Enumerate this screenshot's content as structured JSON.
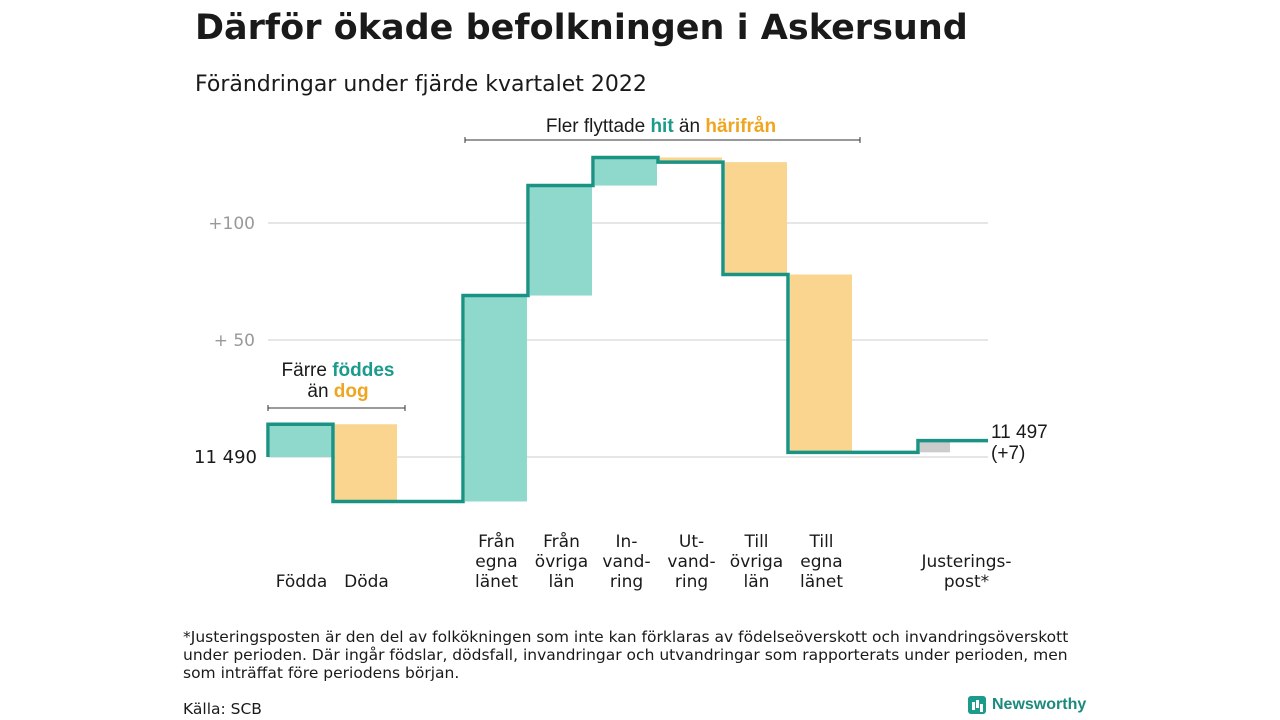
{
  "title": "Därför ökade befolkningen i Askersund",
  "subtitle": "Förändringar under fjärde kvartalet 2022",
  "annotations": {
    "left": {
      "pre": "Färre ",
      "hit": "föddes",
      "line2pre": "än ",
      "dog": "dog"
    },
    "top": {
      "pre": "Fler flyttade ",
      "hit": "hit",
      "mid": " än ",
      "harifran": "härifrån"
    }
  },
  "footnote": "*Justeringsposten är den del av folkökningen som inte kan förklaras av födelseöverskott och invandringsöverskott under perioden. Där ingår födslar, dödsfall, invandringar och utvandringar som rapporterats under perioden, men som inträffat före periodens början.",
  "source": "Källa: SCB",
  "brand": "Newsworthy",
  "colors": {
    "increase": "#8ed8cc",
    "decrease": "#fad58f",
    "adjustment": "#cccccc",
    "line": "#1a9384",
    "grid": "#dddddd"
  },
  "chart_data": {
    "type": "waterfall",
    "start_value": 11490,
    "start_label": "11 490",
    "end_label": [
      "11 497",
      "(+7)"
    ],
    "y_ticks": [
      {
        "value": 11540,
        "label": "+ 50"
      },
      {
        "value": 11590,
        "label": "+100"
      }
    ],
    "ylim": [
      11480,
      11630
    ],
    "steps": [
      {
        "label": [
          "Födda"
        ],
        "change": 14,
        "kind": "increase"
      },
      {
        "label": [
          "Döda"
        ],
        "change": -33,
        "kind": "decrease"
      },
      {
        "label": [
          "",
          "",
          ""
        ],
        "change": 0,
        "kind": "gap"
      },
      {
        "label": [
          "Från",
          "egna",
          "länet"
        ],
        "change": 88,
        "kind": "increase"
      },
      {
        "label": [
          "Från",
          "övriga",
          "län"
        ],
        "change": 47,
        "kind": "increase"
      },
      {
        "label": [
          "In-",
          "vand-",
          "ring"
        ],
        "change": 12,
        "kind": "increase"
      },
      {
        "label": [
          "Ut-",
          "vand-",
          "ring"
        ],
        "change": -2,
        "kind": "decrease"
      },
      {
        "label": [
          "Till",
          "övriga",
          "län"
        ],
        "change": -48,
        "kind": "decrease"
      },
      {
        "label": [
          "Till",
          "egna",
          "länet"
        ],
        "change": -76,
        "kind": "decrease"
      },
      {
        "label": [
          "",
          "",
          ""
        ],
        "change": 0,
        "kind": "gap"
      },
      {
        "label": [
          "Justerings-",
          "post*"
        ],
        "change": 5,
        "kind": "adjustment"
      }
    ]
  }
}
